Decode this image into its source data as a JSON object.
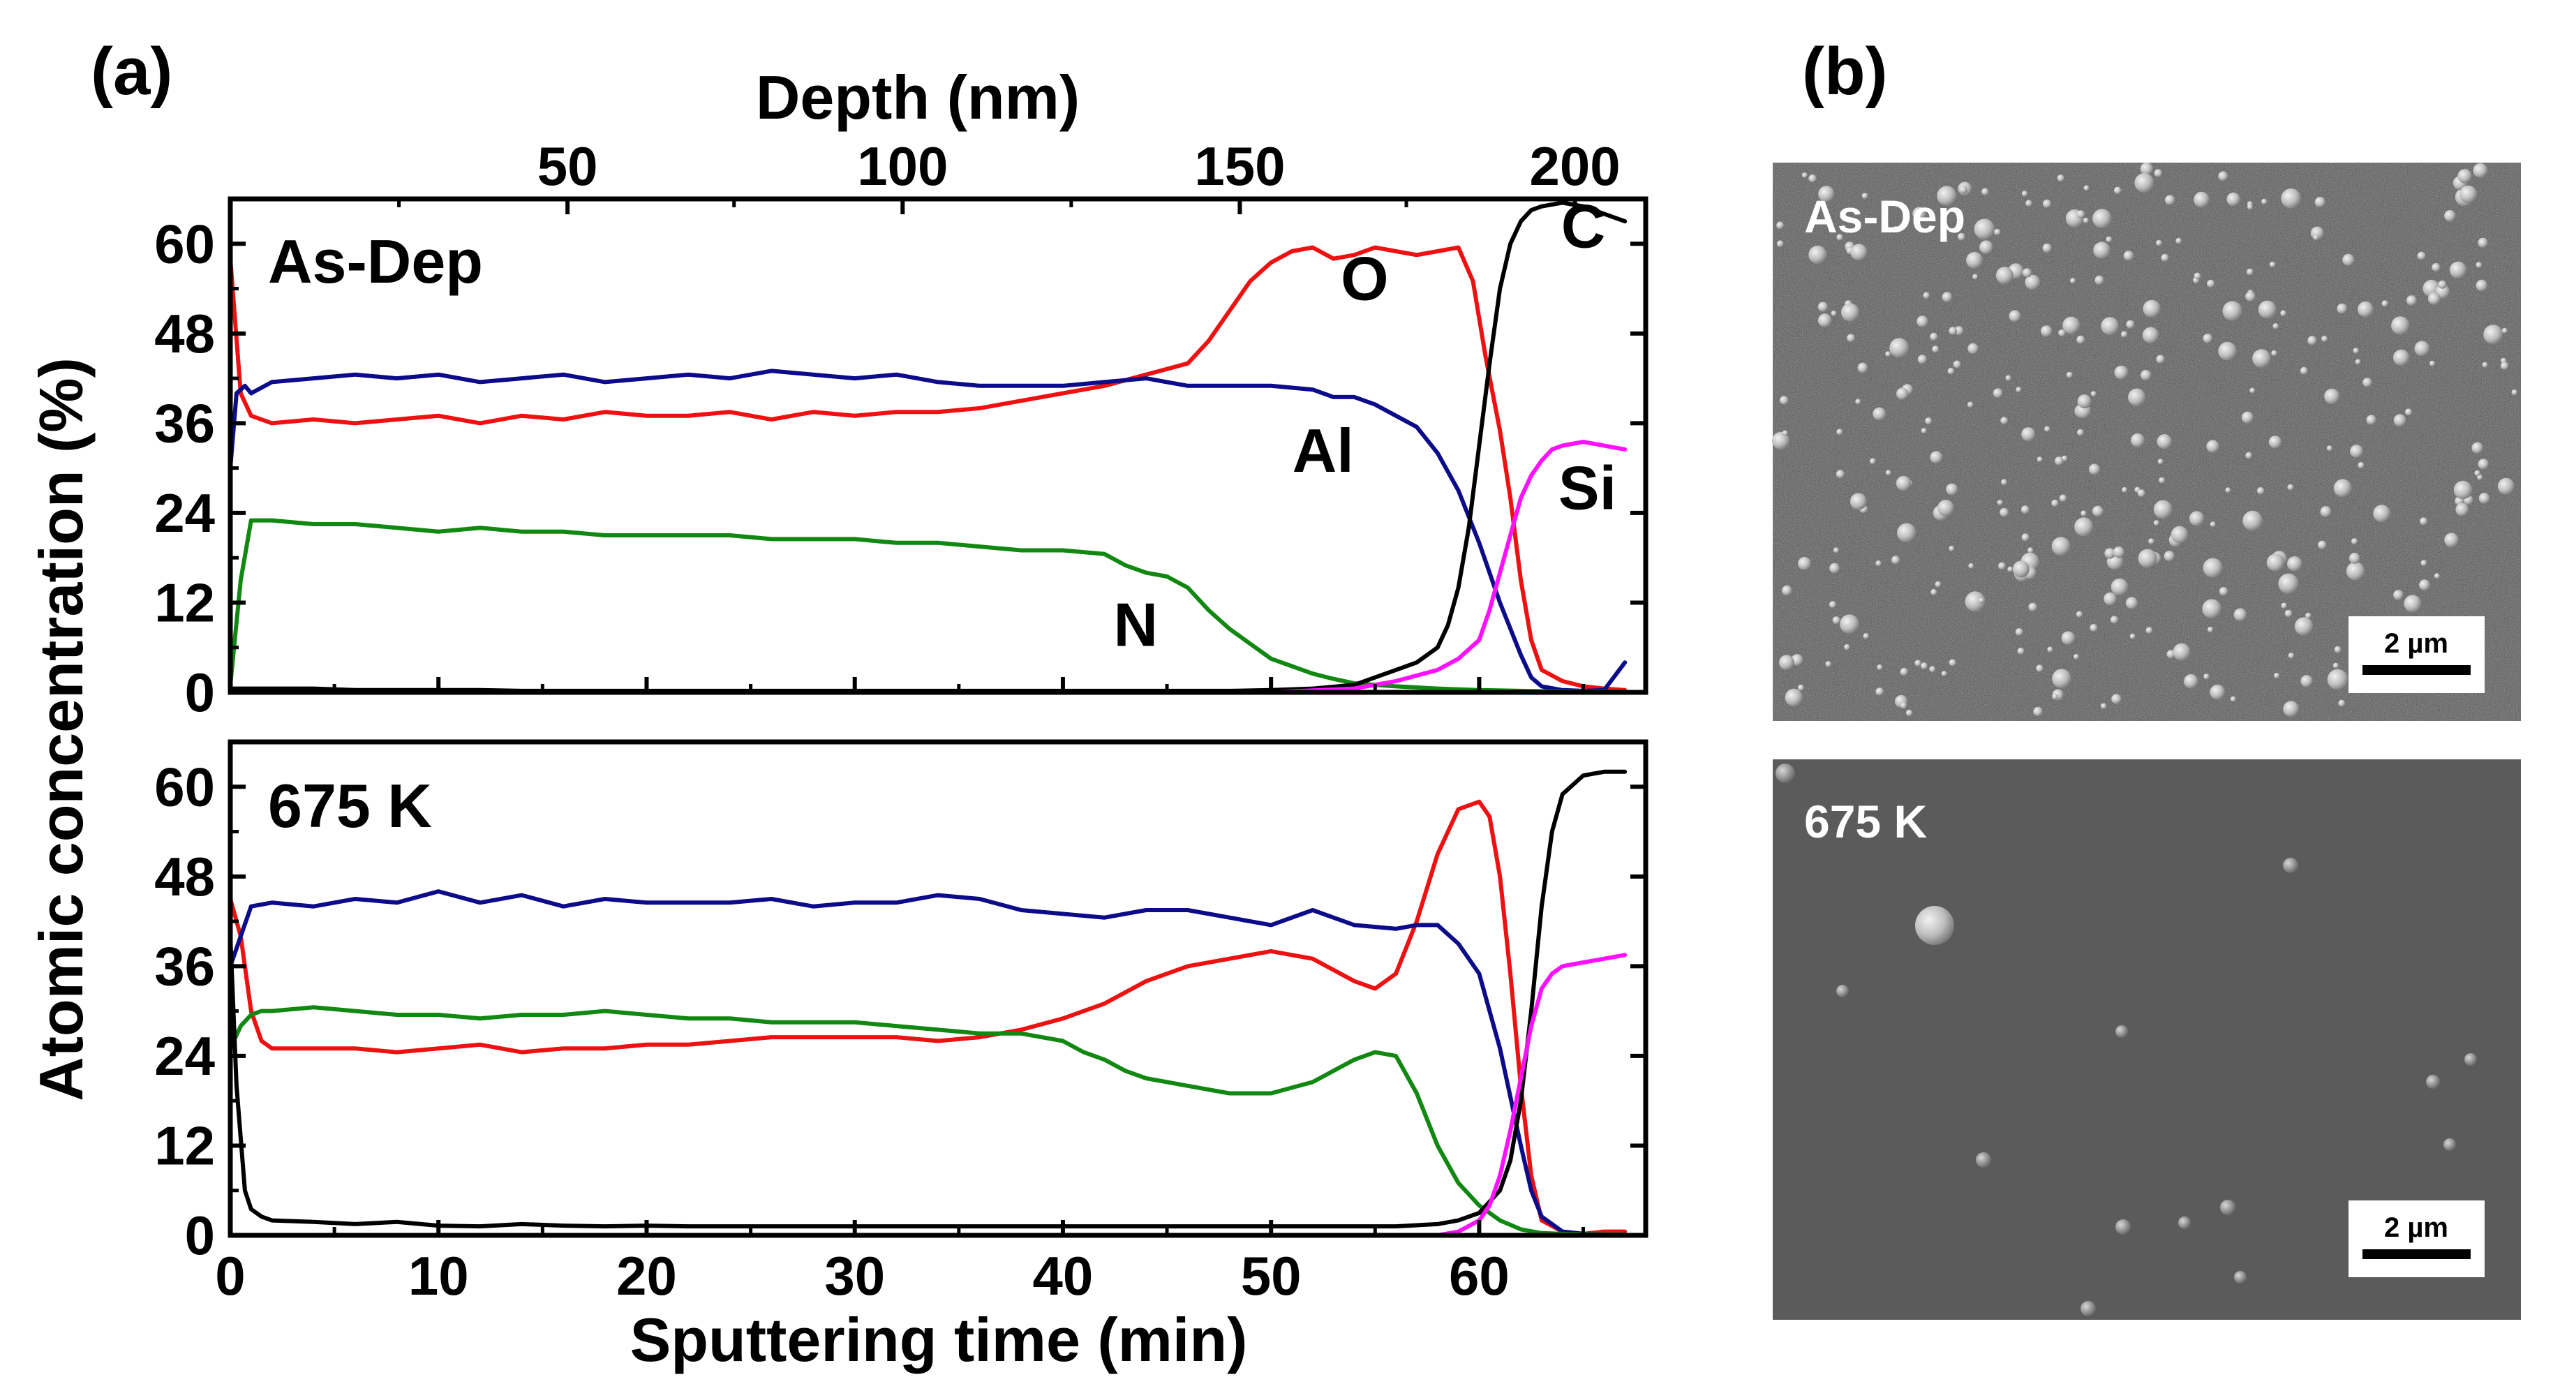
{
  "panel_a_label": "(a)",
  "panel_b_label": "(b)",
  "chart_data": [
    {
      "type": "line",
      "name": "As-Dep",
      "title": "As-Dep",
      "xlabel": "Sputtering time (min)",
      "ylabel": "Atomic concentration (%)",
      "top_xlabel": "Depth (nm)",
      "top_ticks": [
        "50",
        "100",
        "150",
        "200"
      ],
      "top_tick_times": [
        16.2,
        32.3,
        48.5,
        64.6
      ],
      "xlim": [
        0,
        68
      ],
      "ylim": [
        0,
        66
      ],
      "yticks": [
        0,
        12,
        24,
        36,
        48,
        60
      ],
      "xticks": [],
      "series": [
        {
          "name": "O",
          "color": "#ee1111",
          "label": "O",
          "label_pos": [
            54.5,
            52.5
          ],
          "x": [
            0,
            0.5,
            1,
            2,
            4,
            6,
            8,
            10,
            12,
            14,
            16,
            18,
            20,
            22,
            24,
            26,
            28,
            30,
            32,
            34,
            36,
            38,
            40,
            42,
            44,
            46,
            47,
            48,
            49,
            50,
            51,
            52,
            53,
            54,
            55,
            56,
            57,
            58,
            59,
            59.7,
            60.3,
            61,
            61.5,
            62,
            62.5,
            63,
            64,
            65,
            66,
            67
          ],
          "values": [
            58,
            40,
            37,
            36,
            36.5,
            36,
            36.5,
            37,
            36,
            37,
            36.5,
            37.5,
            37,
            37,
            37.5,
            36.5,
            37.5,
            37,
            37.5,
            37.5,
            38,
            39,
            40,
            41,
            42.5,
            44,
            47,
            51,
            55,
            57.5,
            59,
            59.5,
            58,
            58.5,
            59.5,
            59,
            58.5,
            59,
            59.5,
            55,
            45,
            35,
            26,
            15,
            7,
            3,
            1.5,
            0.8,
            0.5,
            0.3
          ]
        },
        {
          "name": "Al",
          "color": "#0c0c8a",
          "label": "Al",
          "label_pos": [
            52.5,
            29.5
          ],
          "x": [
            0,
            0.3,
            0.7,
            1,
            2,
            4,
            6,
            8,
            10,
            12,
            14,
            16,
            18,
            20,
            22,
            24,
            26,
            28,
            30,
            32,
            34,
            36,
            38,
            40,
            42,
            44,
            46,
            48,
            50,
            52,
            53,
            54,
            55,
            56,
            57,
            58,
            59,
            60,
            61,
            62,
            62.5,
            63,
            64,
            65,
            66,
            67
          ],
          "values": [
            30,
            40,
            41,
            40,
            41.5,
            42,
            42.5,
            42,
            42.5,
            41.5,
            42,
            42.5,
            41.5,
            42,
            42.5,
            42,
            43,
            42.5,
            42,
            42.5,
            41.5,
            41,
            41,
            41,
            41.5,
            42,
            41,
            41,
            41,
            40.5,
            39.5,
            39.5,
            38.5,
            37,
            35.5,
            32,
            27,
            20,
            12,
            5,
            2,
            0.8,
            0.3,
            0.2,
            0.3,
            4
          ]
        },
        {
          "name": "N",
          "color": "#118811",
          "label": "N",
          "label_pos": [
            43.5,
            6.2
          ],
          "x": [
            0,
            0.5,
            1,
            2,
            4,
            6,
            8,
            10,
            12,
            14,
            16,
            18,
            20,
            22,
            24,
            26,
            28,
            30,
            32,
            34,
            36,
            38,
            40,
            42,
            43,
            44,
            45,
            46,
            47,
            48,
            49,
            50,
            51,
            52,
            53,
            54,
            55,
            56,
            58,
            60,
            62,
            64,
            66,
            67
          ],
          "values": [
            1,
            15,
            23,
            23,
            22.5,
            22.5,
            22,
            21.5,
            22,
            21.5,
            21.5,
            21,
            21,
            21,
            21,
            20.5,
            20.5,
            20.5,
            20,
            20,
            19.5,
            19,
            19,
            18.5,
            17,
            16,
            15.5,
            14,
            11,
            8.5,
            6.5,
            4.5,
            3.5,
            2.5,
            1.8,
            1.2,
            1,
            0.8,
            0.5,
            0.3,
            0.2,
            0.1,
            0.1,
            0.1
          ]
        },
        {
          "name": "C",
          "color": "#000000",
          "label": "C",
          "label_pos": [
            65,
            59.5
          ],
          "x": [
            0,
            2,
            4,
            6,
            8,
            10,
            12,
            14,
            16,
            18,
            20,
            22,
            24,
            26,
            28,
            30,
            32,
            34,
            36,
            38,
            40,
            42,
            44,
            46,
            48,
            50,
            52,
            54,
            55,
            56,
            57,
            58,
            58.5,
            59,
            59.5,
            60,
            60.5,
            61,
            61.5,
            62,
            62.5,
            63,
            64,
            65,
            66,
            67
          ],
          "values": [
            0.5,
            0.5,
            0.5,
            0.3,
            0.3,
            0.3,
            0.3,
            0.2,
            0.2,
            0.2,
            0.2,
            0.2,
            0.2,
            0.2,
            0.2,
            0.2,
            0.2,
            0.2,
            0.2,
            0.2,
            0.2,
            0.2,
            0.2,
            0.2,
            0.2,
            0.3,
            0.5,
            1,
            2,
            3,
            4,
            6,
            9,
            14,
            22,
            33,
            44,
            54,
            60,
            63,
            64.5,
            65,
            65.5,
            65,
            64,
            63
          ]
        },
        {
          "name": "Si",
          "color": "#ff11ff",
          "label": "Si",
          "label_pos": [
            65.2,
            24.5
          ],
          "x": [
            0,
            10,
            20,
            30,
            40,
            50,
            54,
            56,
            58,
            59,
            60,
            60.5,
            61,
            61.5,
            62,
            62.5,
            63,
            63.5,
            64,
            65,
            66,
            67
          ],
          "values": [
            0,
            0,
            0,
            0,
            0,
            0,
            0.5,
            1.5,
            3,
            4.5,
            7,
            11,
            16,
            21,
            26,
            29,
            31,
            32.5,
            33,
            33.5,
            33,
            32.5
          ]
        }
      ]
    },
    {
      "type": "line",
      "name": "675 K",
      "title": "675 K",
      "xlabel": "Sputtering time (min)",
      "ylabel": "Atomic concentration (%)",
      "xlim": [
        0,
        68
      ],
      "ylim": [
        0,
        66
      ],
      "yticks": [
        0,
        12,
        24,
        36,
        48,
        60
      ],
      "xticks": [
        0,
        10,
        20,
        30,
        40,
        50,
        60
      ],
      "series": [
        {
          "name": "O",
          "color": "#ee1111",
          "x": [
            0,
            0.5,
            1,
            1.5,
            2,
            4,
            6,
            8,
            10,
            12,
            14,
            16,
            18,
            20,
            22,
            24,
            26,
            28,
            30,
            32,
            34,
            36,
            38,
            40,
            42,
            44,
            46,
            48,
            50,
            52,
            54,
            55,
            56,
            57,
            58,
            59,
            60,
            60.5,
            61,
            61.5,
            62,
            62.5,
            63,
            64,
            65,
            66,
            67
          ],
          "values": [
            45,
            40,
            30,
            26,
            25,
            25,
            25,
            24.5,
            25,
            25.5,
            24.5,
            25,
            25,
            25.5,
            25.5,
            26,
            26.5,
            26.5,
            26.5,
            26.5,
            26,
            26.5,
            27.5,
            29,
            31,
            34,
            36,
            37,
            38,
            37,
            34,
            33,
            35,
            42,
            51,
            57,
            58,
            56,
            48,
            35,
            20,
            8,
            2,
            0.5,
            0.2,
            0.5,
            0.5
          ]
        },
        {
          "name": "Al",
          "color": "#0c0c8a",
          "x": [
            0,
            0.5,
            1,
            2,
            4,
            6,
            8,
            10,
            12,
            14,
            16,
            18,
            20,
            22,
            24,
            26,
            28,
            30,
            32,
            34,
            36,
            38,
            40,
            42,
            44,
            46,
            48,
            50,
            52,
            54,
            56,
            57,
            58,
            59,
            60,
            61,
            62,
            62.5,
            63,
            64,
            65,
            66,
            67
          ],
          "values": [
            36,
            40,
            44,
            44.5,
            44,
            45,
            44.5,
            46,
            44.5,
            45.5,
            44,
            45,
            44.5,
            44.5,
            44.5,
            45,
            44,
            44.5,
            44.5,
            45.5,
            45,
            43.5,
            43,
            42.5,
            43.5,
            43.5,
            42.5,
            41.5,
            43.5,
            41.5,
            41,
            41.5,
            41.5,
            39,
            35,
            25,
            12,
            6,
            2.5,
            0.5,
            0.2,
            0.1,
            0.1
          ]
        },
        {
          "name": "N",
          "color": "#118811",
          "x": [
            0,
            0.5,
            1,
            1.5,
            2,
            4,
            6,
            8,
            10,
            12,
            14,
            16,
            18,
            20,
            22,
            24,
            26,
            28,
            30,
            32,
            34,
            36,
            38,
            40,
            41,
            42,
            43,
            44,
            46,
            48,
            50,
            52,
            53,
            54,
            55,
            56,
            57,
            58,
            59,
            60,
            61,
            62,
            63,
            64,
            66,
            67
          ],
          "values": [
            25,
            28,
            29.5,
            30,
            30,
            30.5,
            30,
            29.5,
            29.5,
            29,
            29.5,
            29.5,
            30,
            29.5,
            29,
            29,
            28.5,
            28.5,
            28.5,
            28,
            27.5,
            27,
            27,
            26,
            24.5,
            23.5,
            22,
            21,
            20,
            19,
            19,
            20.5,
            22,
            23.5,
            24.5,
            24,
            19,
            12,
            7,
            4,
            2,
            0.8,
            0.3,
            0.2,
            0.1,
            0.1
          ]
        },
        {
          "name": "C",
          "color": "#000000",
          "x": [
            0,
            0.3,
            0.7,
            1,
            1.5,
            2,
            4,
            6,
            8,
            10,
            12,
            14,
            16,
            18,
            20,
            22,
            24,
            26,
            28,
            30,
            32,
            34,
            36,
            38,
            40,
            42,
            44,
            46,
            48,
            50,
            52,
            54,
            56,
            58,
            59,
            60,
            61,
            61.5,
            62,
            62.5,
            63,
            63.5,
            64,
            65,
            66,
            67
          ],
          "values": [
            40,
            20,
            6,
            3.5,
            2.5,
            2,
            1.8,
            1.5,
            1.8,
            1.3,
            1.2,
            1.5,
            1.3,
            1.2,
            1.3,
            1.2,
            1.2,
            1.2,
            1.2,
            1.2,
            1.2,
            1.2,
            1.2,
            1.2,
            1.2,
            1.2,
            1.2,
            1.2,
            1.2,
            1.2,
            1.2,
            1.2,
            1.2,
            1.5,
            2,
            3,
            6,
            10,
            18,
            30,
            44,
            54,
            59,
            61.5,
            62,
            62
          ]
        },
        {
          "name": "Si",
          "color": "#ff11ff",
          "x": [
            0,
            10,
            20,
            30,
            40,
            50,
            58,
            59,
            60,
            60.5,
            61,
            61.5,
            62,
            62.5,
            63,
            63.5,
            64,
            65,
            66,
            67
          ],
          "values": [
            0,
            0,
            0,
            0,
            0,
            0,
            0,
            0.5,
            2,
            4,
            8,
            14,
            21,
            28,
            33,
            35,
            36,
            36.5,
            37,
            37.5
          ]
        }
      ]
    }
  ],
  "sem_images": [
    {
      "label": "As-Dep",
      "scale_bar": "2 µm"
    },
    {
      "label": "675 K",
      "scale_bar": "2 µm"
    }
  ]
}
